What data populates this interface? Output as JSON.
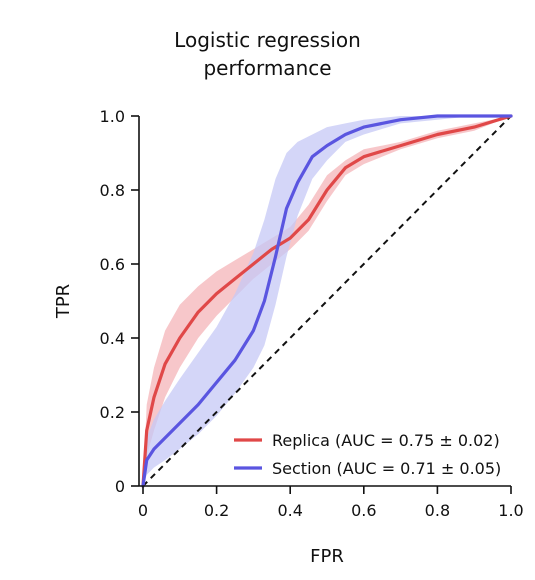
{
  "chart_data": {
    "type": "line",
    "title": [
      "Logistic regression",
      "performance"
    ],
    "xlabel": "FPR",
    "ylabel": "TPR",
    "xlim": [
      0,
      1
    ],
    "ylim": [
      0,
      1
    ],
    "xticks": [
      "0",
      "0.2",
      "0.4",
      "0.6",
      "0.8",
      "1.0"
    ],
    "yticks": [
      "0",
      "0.2",
      "0.4",
      "0.6",
      "0.8",
      "1.0"
    ],
    "legend_position": "lower-right",
    "grid": false,
    "series": [
      {
        "name": "Replica (AUC = 0.75 ± 0.02)",
        "color": "#e04848",
        "band_color": "#f4b4b8",
        "x": [
          0.0,
          0.01,
          0.03,
          0.06,
          0.1,
          0.15,
          0.2,
          0.25,
          0.3,
          0.35,
          0.4,
          0.45,
          0.5,
          0.55,
          0.6,
          0.7,
          0.8,
          0.9,
          1.0
        ],
        "y": [
          0.0,
          0.15,
          0.24,
          0.33,
          0.4,
          0.47,
          0.52,
          0.56,
          0.6,
          0.64,
          0.67,
          0.72,
          0.8,
          0.86,
          0.89,
          0.92,
          0.95,
          0.97,
          1.0
        ],
        "lower": [
          0.0,
          0.08,
          0.15,
          0.24,
          0.32,
          0.4,
          0.46,
          0.51,
          0.56,
          0.6,
          0.64,
          0.69,
          0.77,
          0.84,
          0.87,
          0.91,
          0.94,
          0.96,
          1.0
        ],
        "upper": [
          0.0,
          0.22,
          0.32,
          0.42,
          0.49,
          0.54,
          0.58,
          0.61,
          0.64,
          0.67,
          0.7,
          0.76,
          0.84,
          0.88,
          0.91,
          0.93,
          0.96,
          0.98,
          1.0
        ]
      },
      {
        "name": "Section (AUC = 0.71 ± 0.05)",
        "color": "#5a55e0",
        "band_color": "#c6c8f6",
        "x": [
          0.0,
          0.01,
          0.03,
          0.06,
          0.1,
          0.15,
          0.2,
          0.25,
          0.3,
          0.33,
          0.36,
          0.39,
          0.42,
          0.46,
          0.5,
          0.55,
          0.6,
          0.7,
          0.8,
          0.9,
          1.0
        ],
        "y": [
          0.0,
          0.07,
          0.1,
          0.13,
          0.17,
          0.22,
          0.28,
          0.34,
          0.42,
          0.5,
          0.62,
          0.75,
          0.82,
          0.89,
          0.92,
          0.95,
          0.97,
          0.99,
          1.0,
          1.0,
          1.0
        ],
        "lower": [
          0.0,
          0.03,
          0.05,
          0.07,
          0.1,
          0.14,
          0.19,
          0.25,
          0.32,
          0.38,
          0.49,
          0.62,
          0.73,
          0.83,
          0.88,
          0.93,
          0.95,
          0.98,
          0.99,
          1.0,
          1.0
        ],
        "upper": [
          0.0,
          0.13,
          0.18,
          0.23,
          0.29,
          0.36,
          0.43,
          0.52,
          0.63,
          0.72,
          0.83,
          0.9,
          0.93,
          0.95,
          0.97,
          0.98,
          0.99,
          1.0,
          1.0,
          1.0,
          1.0
        ]
      }
    ],
    "reference_line": {
      "x": [
        0,
        1
      ],
      "y": [
        0,
        1
      ],
      "color": "#111111",
      "style": "dashed"
    }
  }
}
